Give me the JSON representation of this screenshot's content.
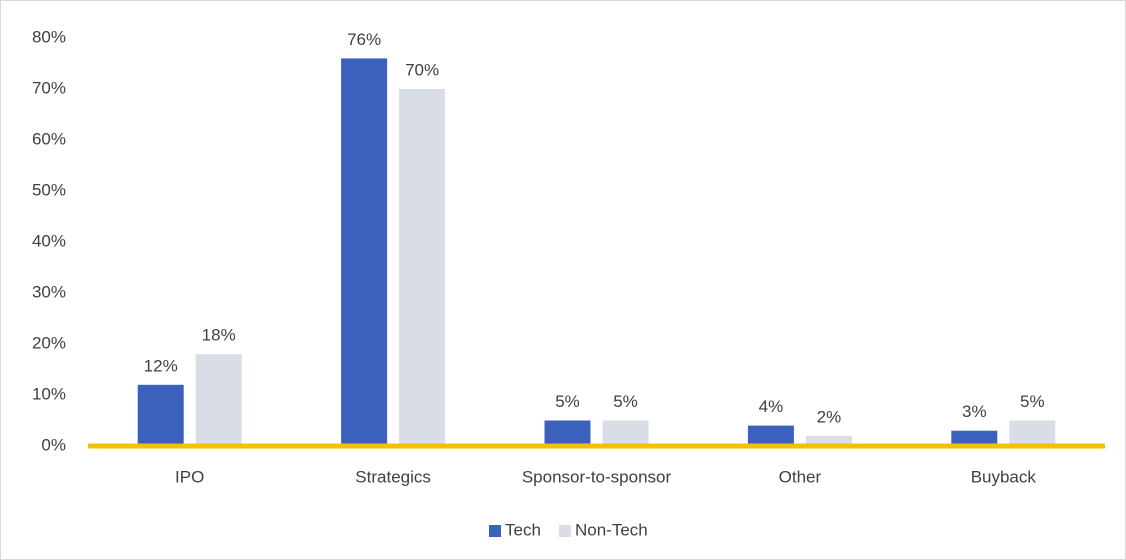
{
  "chart_data": {
    "type": "bar",
    "categories": [
      "IPO",
      "Strategics",
      "Sponsor-to-sponsor",
      "Other",
      "Buyback"
    ],
    "series": [
      {
        "name": "Tech",
        "color": "#3a62bd",
        "values": [
          12,
          76,
          5,
          4,
          3
        ],
        "value_labels": [
          "12%",
          "76%",
          "5%",
          "4%",
          "3%"
        ]
      },
      {
        "name": "Non-Tech",
        "color": "#d9dde6",
        "values": [
          18,
          70,
          5,
          2,
          5
        ],
        "value_labels": [
          "18%",
          "70%",
          "5%",
          "2%",
          "5%"
        ]
      }
    ],
    "ylim": [
      0,
      80
    ],
    "yticks": [
      {
        "value": 0,
        "label": "0%"
      },
      {
        "value": 10,
        "label": "10%"
      },
      {
        "value": 20,
        "label": "20%"
      },
      {
        "value": 30,
        "label": "30%"
      },
      {
        "value": 40,
        "label": "40%"
      },
      {
        "value": 50,
        "label": "50%"
      },
      {
        "value": 60,
        "label": "60%"
      },
      {
        "value": 70,
        "label": "70%"
      },
      {
        "value": 80,
        "label": "80%"
      }
    ],
    "grid": false,
    "baseline_color": "#f5c000",
    "legend": "bottom"
  }
}
